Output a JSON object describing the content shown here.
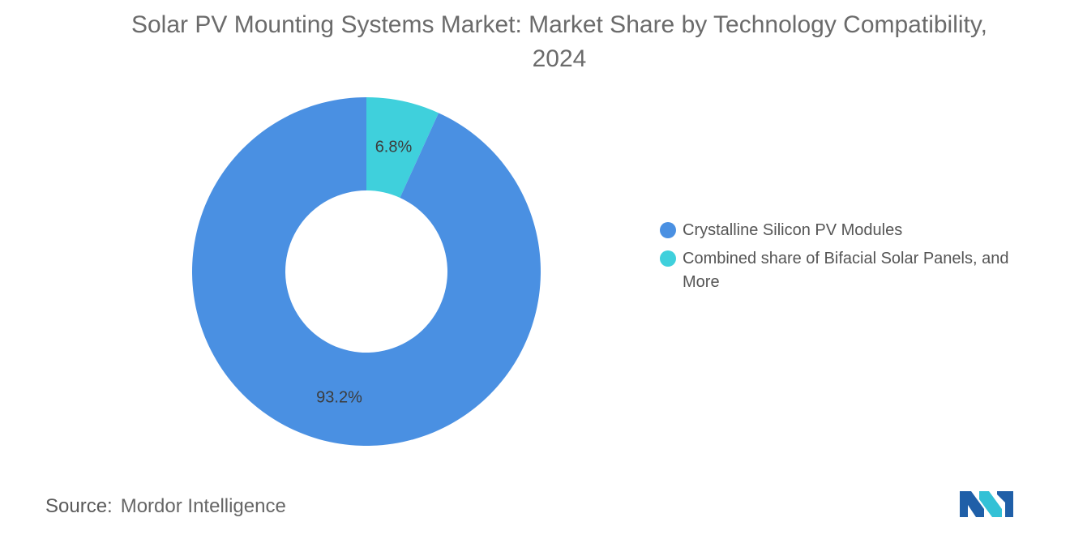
{
  "chart": {
    "title": "Solar PV Mounting Systems Market: Market Share by Technology Compatibility, 2024"
  },
  "chart_data": {
    "type": "pie",
    "variant": "donut",
    "title": "Solar PV Mounting Systems Market: Market Share by Technology Compatibility, 2024",
    "categories": [
      "Crystalline Silicon PV Modules",
      "Combined share of Bifacial Solar Panels, and More"
    ],
    "values": [
      93.2,
      6.8
    ],
    "data_labels": [
      "93.2%",
      "6.8%"
    ],
    "colors": [
      "#4a90e2",
      "#3fd0dc"
    ],
    "legend_position": "right",
    "unit": "%"
  },
  "legend": {
    "items": [
      {
        "label": "Crystalline Silicon PV Modules",
        "color": "#4a90e2"
      },
      {
        "label": "Combined share of Bifacial Solar Panels, and More",
        "color": "#3fd0dc"
      }
    ]
  },
  "footer": {
    "source_prefix": "Source:",
    "source_name": "Mordor Intelligence",
    "logo_icon": "mordor-intelligence-logo-icon"
  }
}
